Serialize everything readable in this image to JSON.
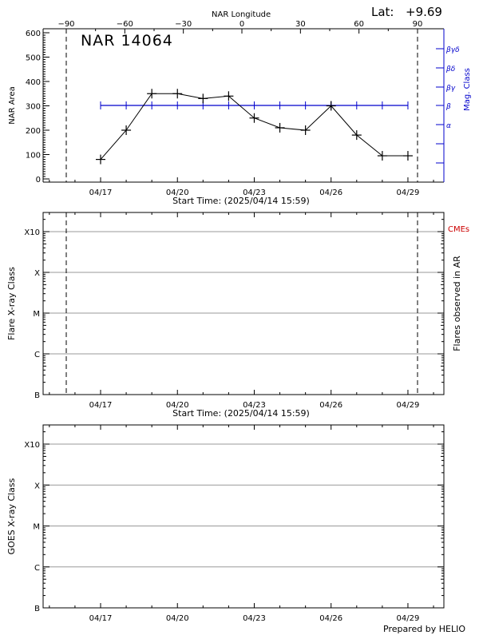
{
  "header": {
    "lat_label": "Lat:",
    "lat_value": "+9.69",
    "top_axis_title": "NAR Longitude",
    "region_title": "NAR 14064"
  },
  "footer": {
    "prepared_by": "Prepared by HELIO"
  },
  "colors": {
    "axis": "#000000",
    "mag_class": "#0000cc",
    "cme_label": "#cc0000",
    "grid": "#999999"
  },
  "chart_data": [
    {
      "id": "nar-area",
      "type": "line",
      "title": "NAR 14064",
      "xlabel": "Start Time: (2025/04/14 15:59)",
      "ylabel": "NAR Area",
      "y2label": "Mag. Class",
      "top_xlabel": "NAR Longitude",
      "ylim": [
        0,
        600
      ],
      "yticks": [
        0,
        100,
        200,
        300,
        400,
        500,
        600
      ],
      "x_tick_labels": [
        "04/17",
        "04/20",
        "04/23",
        "04/26",
        "04/29"
      ],
      "top_tick_labels": [
        "-90",
        "-60",
        "-30",
        "0",
        "30",
        "60",
        "90"
      ],
      "mag_class_ticks": [
        "α",
        "β",
        "βγ",
        "βδ",
        "βγδ"
      ],
      "dashed_limb_lines": [
        "-90",
        "90"
      ],
      "grid": false,
      "x": [
        "04/17",
        "04/18",
        "04/19",
        "04/20",
        "04/21",
        "04/22",
        "04/23",
        "04/24",
        "04/25",
        "04/26",
        "04/27",
        "04/28",
        "04/29"
      ],
      "series": [
        {
          "name": "NAR Area",
          "color": "#000000",
          "values": [
            80,
            200,
            350,
            350,
            330,
            340,
            250,
            210,
            200,
            300,
            180,
            95,
            95
          ]
        },
        {
          "name": "Mag. Class",
          "color": "#0000cc",
          "values": [
            "β",
            "β",
            "β",
            "β",
            "β",
            "β",
            "β",
            "β",
            "β",
            "β",
            "β",
            "β",
            "β"
          ]
        }
      ]
    },
    {
      "id": "flare-class",
      "type": "scatter",
      "xlabel": "Start Time: (2025/04/14 15:59)",
      "ylabel": "Flare X-ray Class",
      "y2label": "Flares observed in AR",
      "legend_note": "CMEs",
      "ytick_labels": [
        "B",
        "C",
        "M",
        "X",
        "X10"
      ],
      "x_tick_labels": [
        "04/17",
        "04/20",
        "04/23",
        "04/26",
        "04/29"
      ],
      "grid": true,
      "series": []
    },
    {
      "id": "goes-class",
      "type": "line",
      "xlabel": "",
      "ylabel": "GOES X-ray Class",
      "ytick_labels": [
        "B",
        "C",
        "M",
        "X",
        "X10"
      ],
      "x_tick_labels": [
        "04/17",
        "04/20",
        "04/23",
        "04/26",
        "04/29"
      ],
      "grid": true,
      "series": []
    }
  ]
}
